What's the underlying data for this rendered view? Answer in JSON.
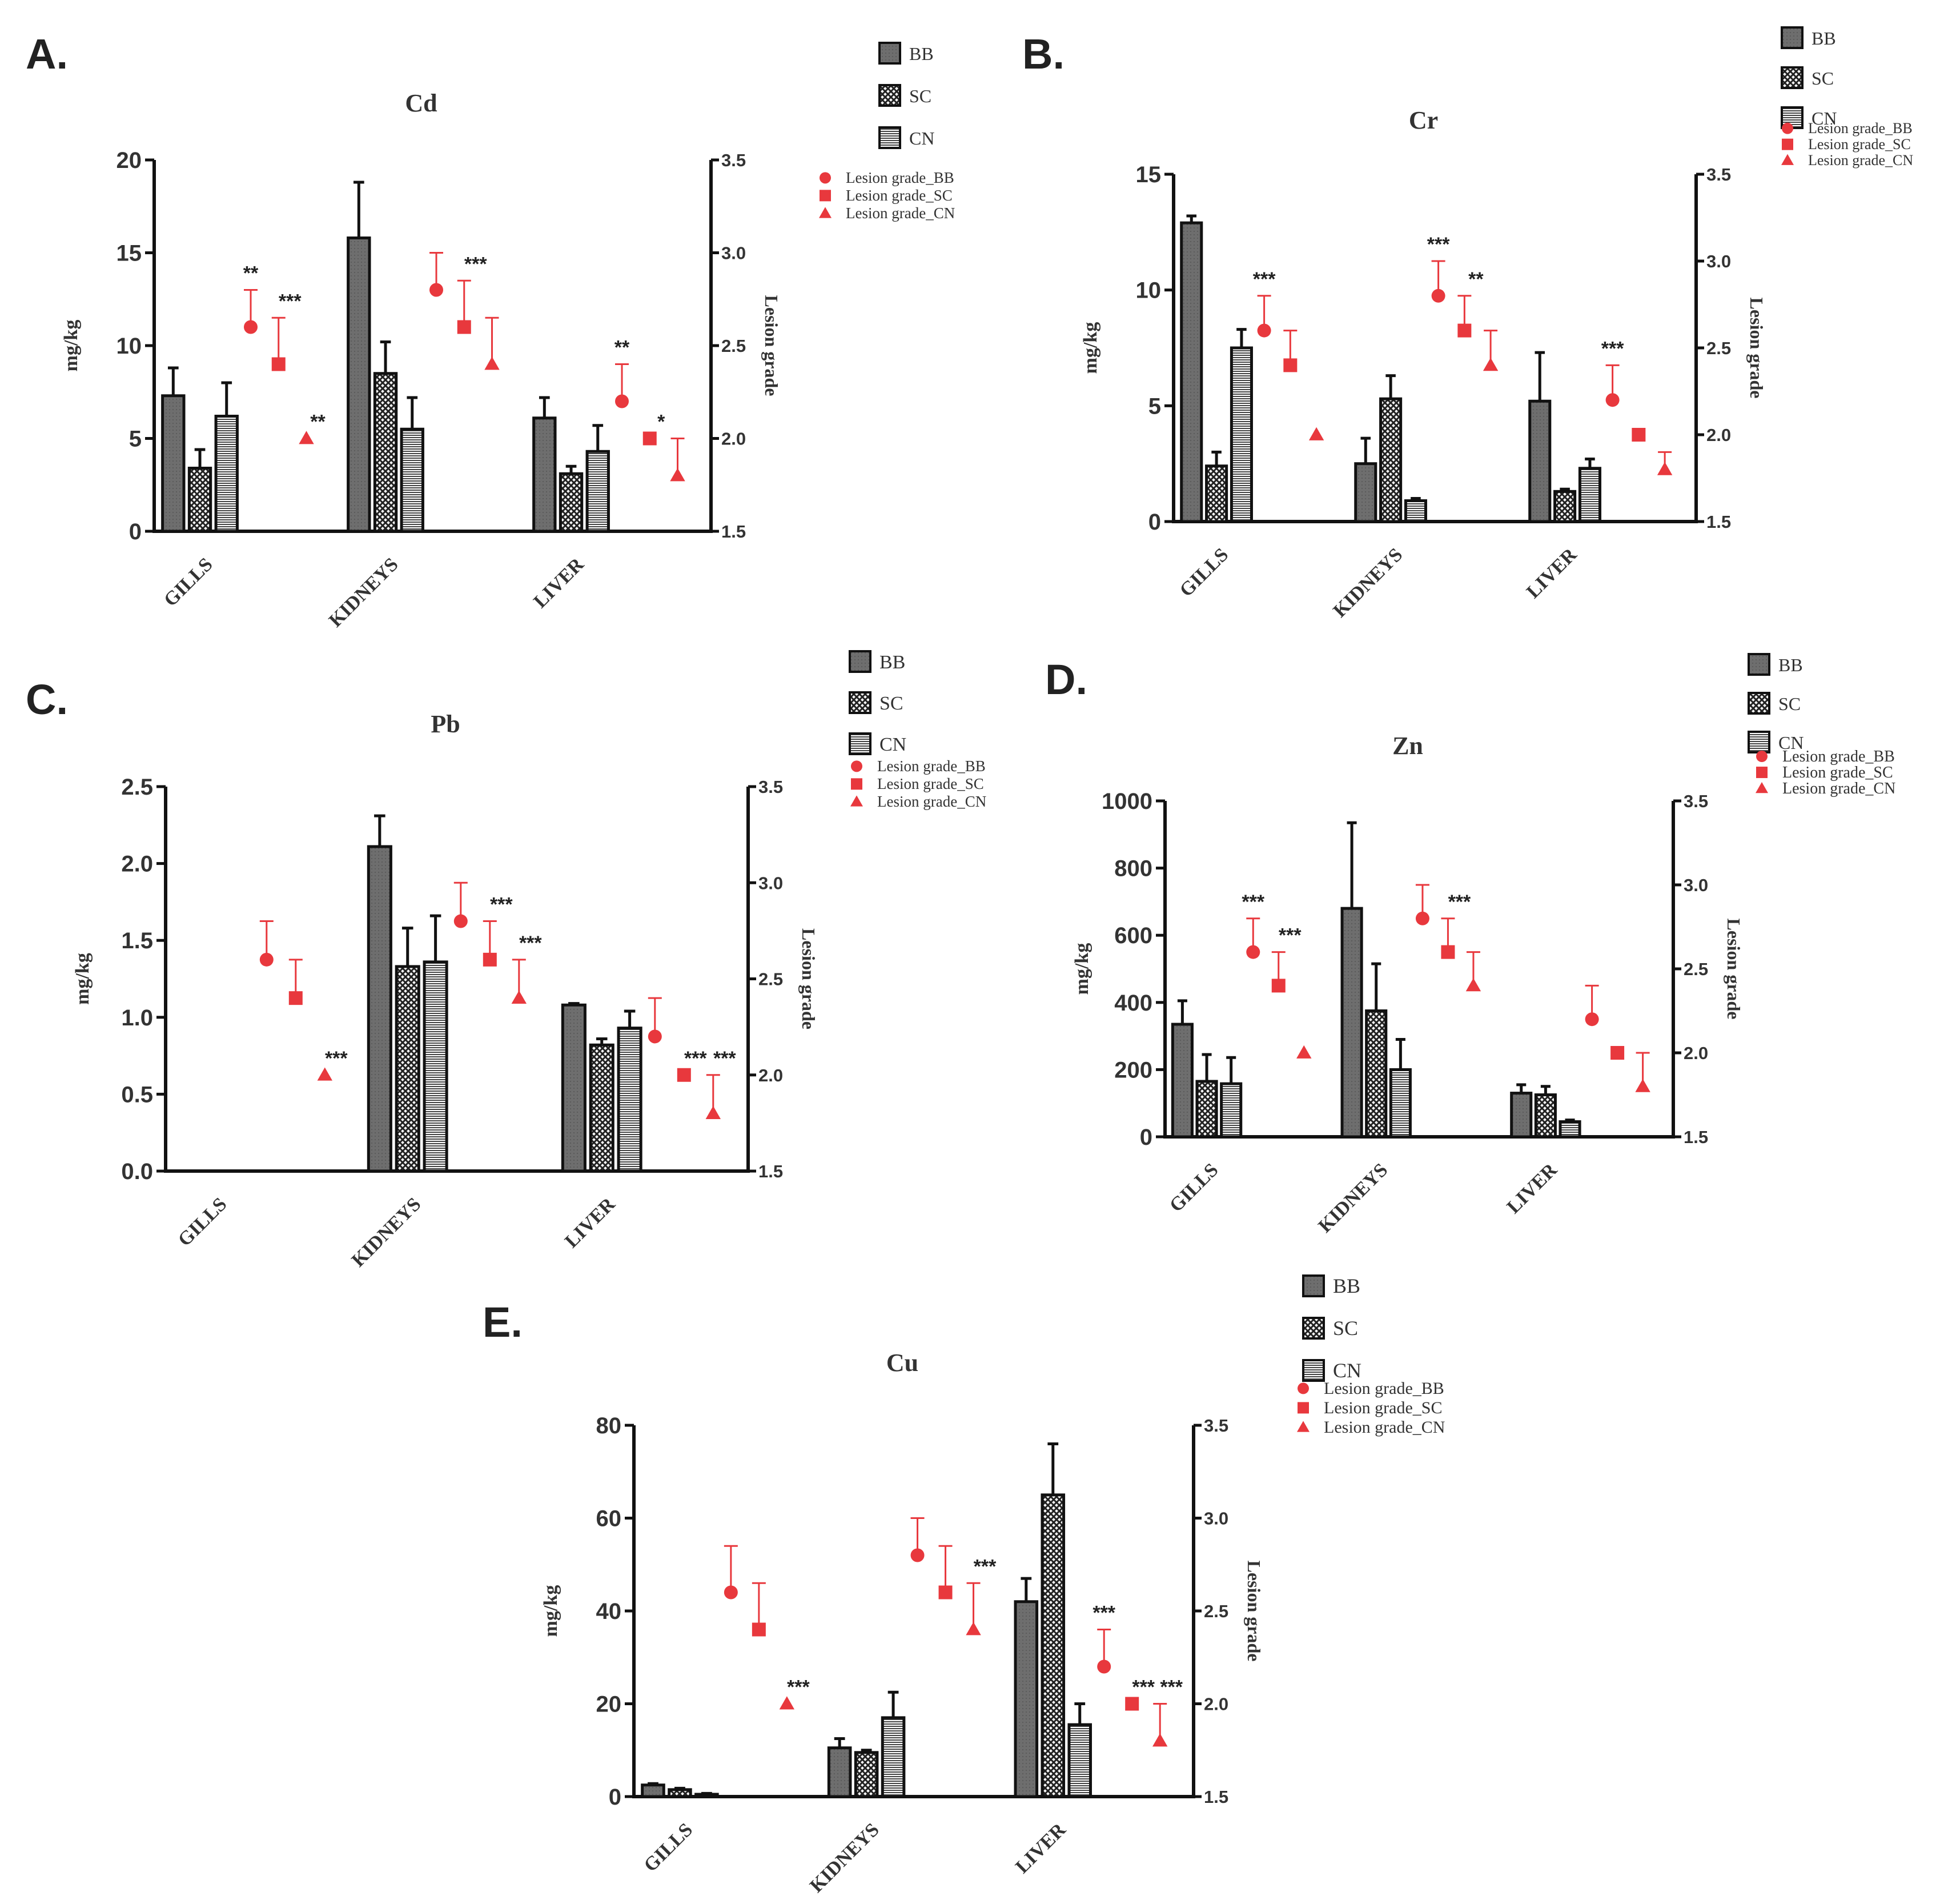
{
  "figure": {
    "y_axis_label": "mg/kg",
    "y2_axis_label": "Lesion grade",
    "categories": [
      "GILLS",
      "KIDNEYS",
      "LIVER"
    ],
    "bar_series": [
      "BB",
      "SC",
      "CN"
    ],
    "lesion_series": [
      "Lesion grade_BB",
      "Lesion grade_SC",
      "Lesion grade_CN"
    ],
    "colors": {
      "bb": "#6e6e6e",
      "sc": "#a9a9a9",
      "cn": "#e2e2e2",
      "lesion": "#e8383d",
      "axis": "#111111"
    }
  },
  "chart_data": [
    {
      "panel": "A.",
      "type": "bar",
      "title": "Cd",
      "categories": [
        "GILLS",
        "KIDNEYS",
        "LIVER"
      ],
      "ylabel": "mg/kg",
      "ylim": [
        0,
        20
      ],
      "yticks": [
        "0",
        "5",
        "10",
        "15",
        "20"
      ],
      "y2label": "Lesion grade",
      "y2lim": [
        1.5,
        3.5
      ],
      "y2ticks": [
        "1.5",
        "2.0",
        "2.5",
        "3.0",
        "3.5"
      ],
      "series": [
        {
          "name": "BB",
          "values": [
            7.3,
            15.8,
            6.1
          ],
          "errors": [
            1.5,
            3.0,
            1.1
          ]
        },
        {
          "name": "SC",
          "values": [
            3.4,
            8.5,
            3.1
          ],
          "errors": [
            1.0,
            1.7,
            0.4
          ]
        },
        {
          "name": "CN",
          "values": [
            6.2,
            5.5,
            4.3
          ],
          "errors": [
            1.8,
            1.7,
            1.4
          ]
        }
      ],
      "lesion_series": [
        {
          "name": "Lesion grade_BB",
          "values": [
            2.6,
            2.8,
            2.2
          ],
          "errors": [
            0.2,
            0.2,
            0.2
          ]
        },
        {
          "name": "Lesion grade_SC",
          "values": [
            2.4,
            2.6,
            2.0
          ],
          "errors": [
            0.25,
            0.25,
            0.0
          ]
        },
        {
          "name": "Lesion grade_CN",
          "values": [
            2.0,
            2.4,
            1.8
          ],
          "errors": [
            0.0,
            0.25,
            0.2
          ]
        }
      ],
      "significance": [
        [
          "**",
          "",
          "**"
        ],
        [
          "***",
          "***",
          "*"
        ],
        [
          "**",
          "",
          ""
        ]
      ]
    },
    {
      "panel": "B.",
      "type": "bar",
      "title": "Cr",
      "categories": [
        "GILLS",
        "KIDNEYS",
        "LIVER"
      ],
      "ylabel": "mg/kg",
      "ylim": [
        0,
        15
      ],
      "yticks": [
        "0",
        "5",
        "10",
        "15"
      ],
      "y2label": "Lesion grade",
      "y2lim": [
        1.5,
        3.5
      ],
      "y2ticks": [
        "1.5",
        "2.0",
        "2.5",
        "3.0",
        "3.5"
      ],
      "series": [
        {
          "name": "BB",
          "values": [
            12.9,
            2.5,
            5.2
          ],
          "errors": [
            0.3,
            1.1,
            2.1
          ]
        },
        {
          "name": "SC",
          "values": [
            2.4,
            5.3,
            1.3
          ],
          "errors": [
            0.6,
            1.0,
            0.1
          ]
        },
        {
          "name": "CN",
          "values": [
            7.5,
            0.9,
            2.3
          ],
          "errors": [
            0.8,
            0.1,
            0.4
          ]
        }
      ],
      "lesion_series": [
        {
          "name": "Lesion grade_BB",
          "values": [
            2.6,
            2.8,
            2.2
          ],
          "errors": [
            0.2,
            0.2,
            0.2
          ]
        },
        {
          "name": "Lesion grade_SC",
          "values": [
            2.4,
            2.6,
            2.0
          ],
          "errors": [
            0.2,
            0.2,
            0.0
          ]
        },
        {
          "name": "Lesion grade_CN",
          "values": [
            2.0,
            2.4,
            1.8
          ],
          "errors": [
            0.0,
            0.2,
            0.1
          ]
        }
      ],
      "significance": [
        [
          "***",
          "***",
          "***"
        ],
        [
          "",
          "**",
          ""
        ],
        [
          "",
          "",
          ""
        ]
      ]
    },
    {
      "panel": "C.",
      "type": "bar",
      "title": "Pb",
      "categories": [
        "GILLS",
        "KIDNEYS",
        "LIVER"
      ],
      "ylabel": "mg/kg",
      "ylim": [
        0,
        2.5
      ],
      "yticks": [
        "0.0",
        "0.5",
        "1.0",
        "1.5",
        "2.0",
        "2.5"
      ],
      "y2label": "Lesion grade",
      "y2lim": [
        1.5,
        3.5
      ],
      "y2ticks": [
        "1.5",
        "2.0",
        "2.5",
        "3.0",
        "3.5"
      ],
      "series": [
        {
          "name": "BB",
          "values": [
            0,
            2.11,
            1.08
          ],
          "errors": [
            0,
            0.2,
            0.01
          ]
        },
        {
          "name": "SC",
          "values": [
            0,
            1.33,
            0.82
          ],
          "errors": [
            0,
            0.25,
            0.04
          ]
        },
        {
          "name": "CN",
          "values": [
            0,
            1.36,
            0.93
          ],
          "errors": [
            0,
            0.3,
            0.11
          ]
        }
      ],
      "lesion_series": [
        {
          "name": "Lesion grade_BB",
          "values": [
            2.6,
            2.8,
            2.2
          ],
          "errors": [
            0.2,
            0.2,
            0.2
          ]
        },
        {
          "name": "Lesion grade_SC",
          "values": [
            2.4,
            2.6,
            2.0
          ],
          "errors": [
            0.2,
            0.2,
            0.0
          ]
        },
        {
          "name": "Lesion grade_CN",
          "values": [
            2.0,
            2.4,
            1.8
          ],
          "errors": [
            0.0,
            0.2,
            0.2
          ]
        }
      ],
      "significance": [
        [
          "",
          "",
          ""
        ],
        [
          "",
          "***",
          "***"
        ],
        [
          "***",
          "***",
          "***"
        ]
      ]
    },
    {
      "panel": "D.",
      "type": "bar",
      "title": "Zn",
      "categories": [
        "GILLS",
        "KIDNEYS",
        "LIVER"
      ],
      "ylabel": "mg/kg",
      "ylim": [
        0,
        1000
      ],
      "yticks": [
        "0",
        "200",
        "400",
        "600",
        "800",
        "1000"
      ],
      "y2label": "Lesion grade",
      "y2lim": [
        1.5,
        3.5
      ],
      "y2ticks": [
        "1.5",
        "2.0",
        "2.5",
        "3.0",
        "3.5"
      ],
      "series": [
        {
          "name": "BB",
          "values": [
            335,
            680,
            130
          ],
          "errors": [
            70,
            255,
            25
          ]
        },
        {
          "name": "SC",
          "values": [
            165,
            375,
            125
          ],
          "errors": [
            80,
            140,
            25
          ]
        },
        {
          "name": "CN",
          "values": [
            158,
            200,
            45
          ],
          "errors": [
            78,
            90,
            5
          ]
        }
      ],
      "lesion_series": [
        {
          "name": "Lesion grade_BB",
          "values": [
            2.6,
            2.8,
            2.2
          ],
          "errors": [
            0.2,
            0.2,
            0.2
          ]
        },
        {
          "name": "Lesion grade_SC",
          "values": [
            2.4,
            2.6,
            2.0
          ],
          "errors": [
            0.2,
            0.2,
            0.0
          ]
        },
        {
          "name": "Lesion grade_CN",
          "values": [
            2.0,
            2.4,
            1.8
          ],
          "errors": [
            0.0,
            0.2,
            0.2
          ]
        }
      ],
      "significance": [
        [
          "***",
          "",
          ""
        ],
        [
          "***",
          "***",
          ""
        ],
        [
          "",
          "",
          ""
        ]
      ]
    },
    {
      "panel": "E.",
      "type": "bar",
      "title": "Cu",
      "categories": [
        "GILLS",
        "KIDNEYS",
        "LIVER"
      ],
      "ylabel": "mg/kg",
      "ylim": [
        0,
        80
      ],
      "yticks": [
        "0",
        "20",
        "40",
        "60",
        "80"
      ],
      "y2label": "Lesion grade",
      "y2lim": [
        1.5,
        3.5
      ],
      "y2ticks": [
        "1.5",
        "2.0",
        "2.5",
        "3.0",
        "3.5"
      ],
      "series": [
        {
          "name": "BB",
          "values": [
            2.5,
            10.5,
            42
          ],
          "errors": [
            0.3,
            2.0,
            5
          ]
        },
        {
          "name": "SC",
          "values": [
            1.5,
            9.5,
            65
          ],
          "errors": [
            0.3,
            0.5,
            11
          ]
        },
        {
          "name": "CN",
          "values": [
            0.5,
            17,
            15.5
          ],
          "errors": [
            0.2,
            5.5,
            4.5
          ]
        }
      ],
      "lesion_series": [
        {
          "name": "Lesion grade_BB",
          "values": [
            2.6,
            2.8,
            2.2
          ],
          "errors": [
            0.25,
            0.2,
            0.2
          ]
        },
        {
          "name": "Lesion grade_SC",
          "values": [
            2.4,
            2.6,
            2.0
          ],
          "errors": [
            0.25,
            0.25,
            0.0
          ]
        },
        {
          "name": "Lesion grade_CN",
          "values": [
            2.0,
            2.4,
            1.8
          ],
          "errors": [
            0.0,
            0.25,
            0.2
          ]
        }
      ],
      "significance": [
        [
          "",
          "",
          "***"
        ],
        [
          "",
          "",
          "***"
        ],
        [
          "***",
          "***",
          "***"
        ]
      ]
    }
  ]
}
